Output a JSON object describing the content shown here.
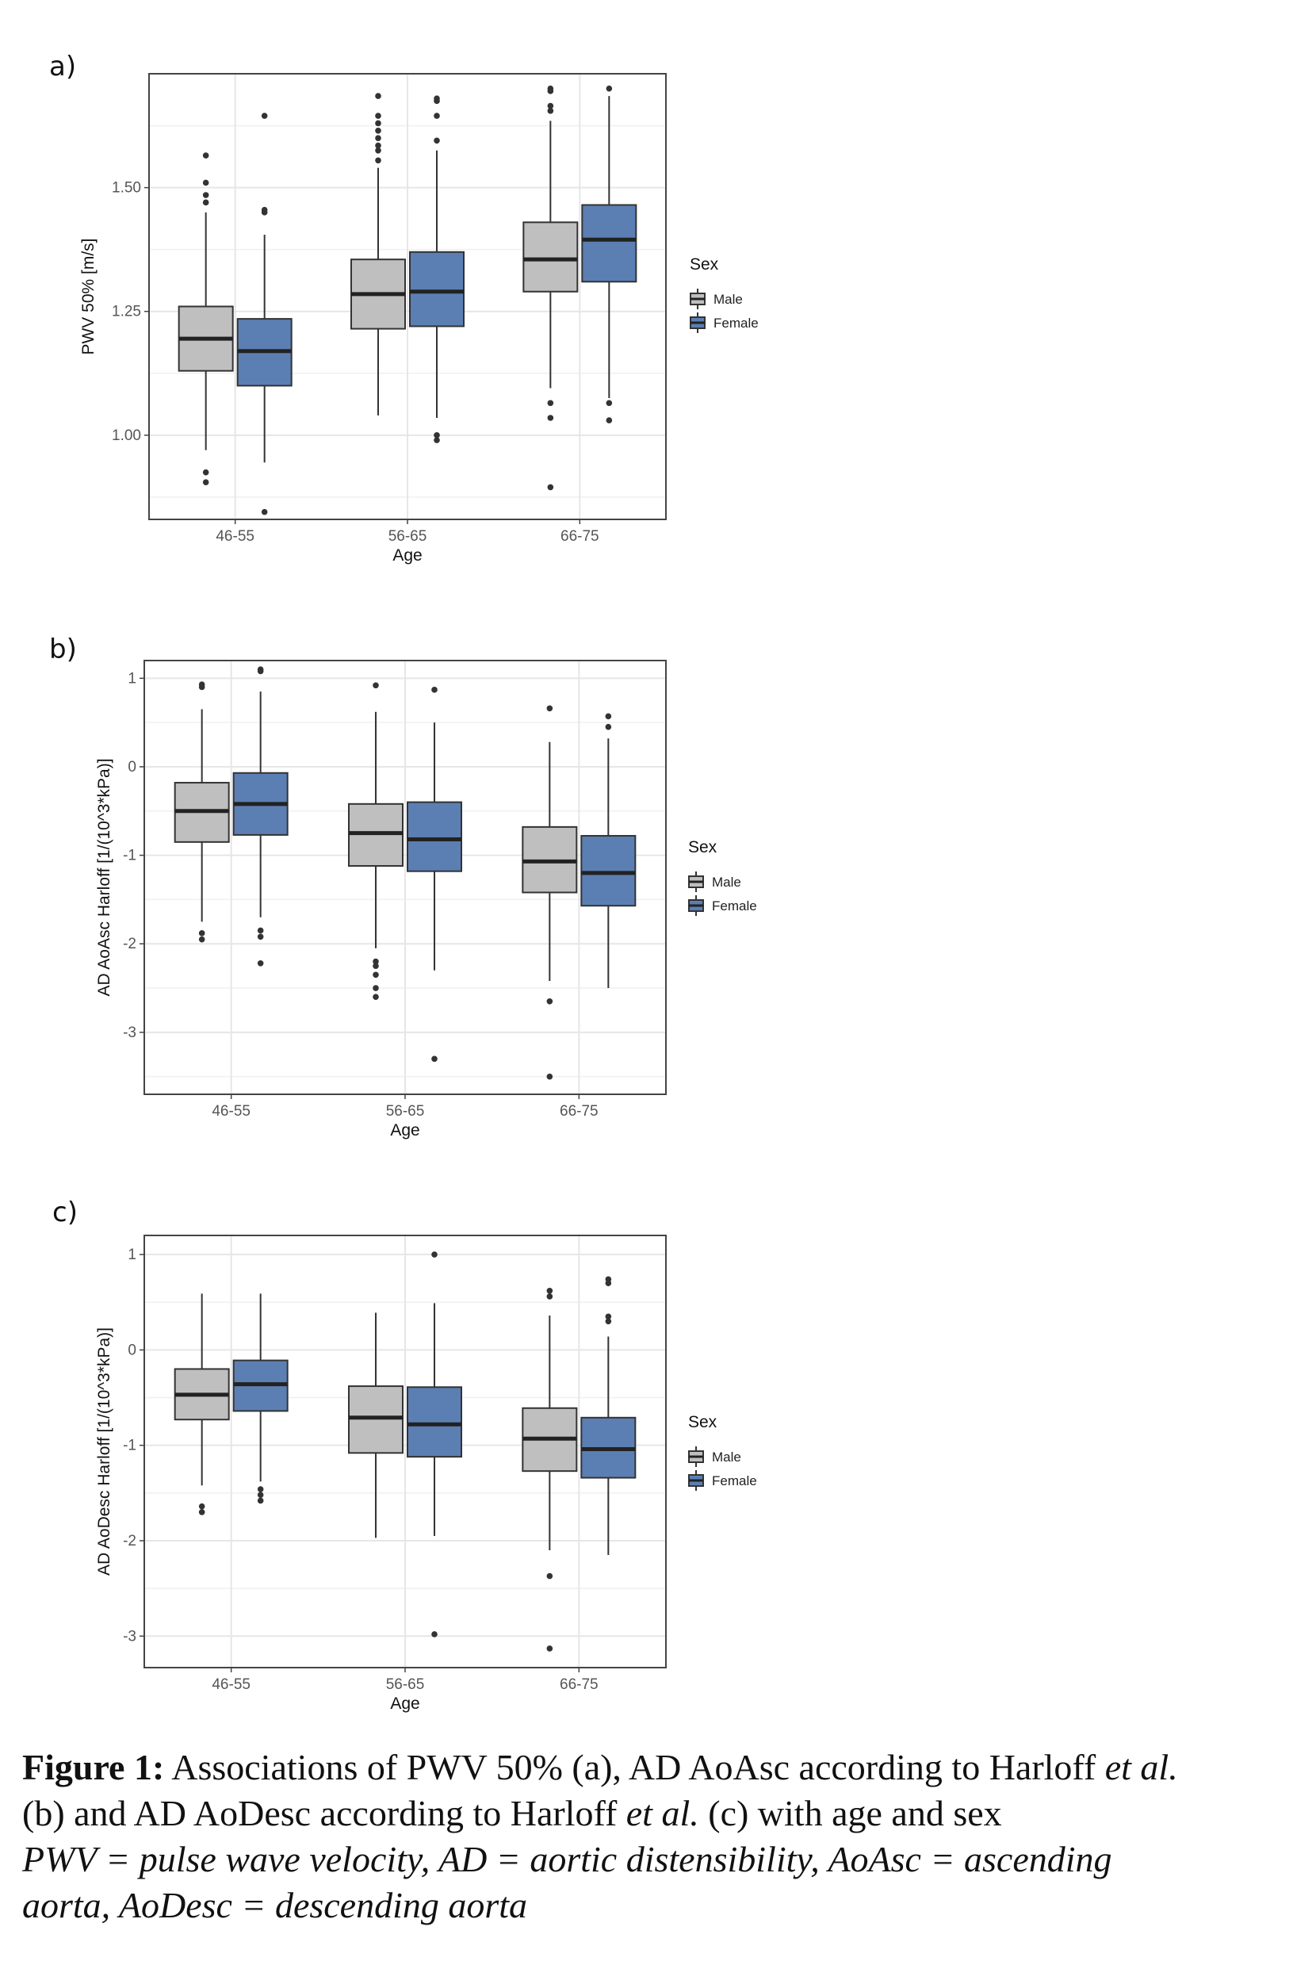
{
  "chart_data": [
    {
      "panel": "a)",
      "type": "box",
      "categories": [
        "46-55",
        "56-65",
        "66-75"
      ],
      "xlabel": "Age",
      "ylabel": "PWV 50% [m/s]",
      "ylim": [
        0.83,
        1.73
      ],
      "yticks": [
        1.0,
        1.25,
        1.5
      ],
      "ytick_labels": [
        "1.00",
        "1.25",
        "1.50"
      ],
      "grid": true,
      "legend": {
        "title": "Sex",
        "position": "right"
      },
      "series": [
        {
          "name": "Male",
          "color": "#bfbfbf",
          "boxes": [
            {
              "q1": 1.13,
              "median": 1.195,
              "q3": 1.26,
              "whisker_low": 0.97,
              "whisker_high": 1.45,
              "outliers": [
                0.905,
                0.925,
                1.47,
                1.485,
                1.51,
                1.565
              ]
            },
            {
              "q1": 1.215,
              "median": 1.285,
              "q3": 1.355,
              "whisker_low": 1.04,
              "whisker_high": 1.54,
              "outliers": [
                1.555,
                1.575,
                1.585,
                1.6,
                1.615,
                1.63,
                1.645,
                1.685
              ]
            },
            {
              "q1": 1.29,
              "median": 1.355,
              "q3": 1.43,
              "whisker_low": 1.095,
              "whisker_high": 1.635,
              "outliers": [
                0.895,
                1.035,
                1.065,
                1.655,
                1.665,
                1.695,
                1.7
              ]
            }
          ]
        },
        {
          "name": "Female",
          "color": "#5b7fb3",
          "boxes": [
            {
              "q1": 1.1,
              "median": 1.17,
              "q3": 1.235,
              "whisker_low": 0.945,
              "whisker_high": 1.405,
              "outliers": [
                0.845,
                1.45,
                1.455,
                1.645
              ]
            },
            {
              "q1": 1.22,
              "median": 1.29,
              "q3": 1.37,
              "whisker_low": 1.035,
              "whisker_high": 1.575,
              "outliers": [
                0.99,
                1.0,
                1.595,
                1.645,
                1.675,
                1.68
              ]
            },
            {
              "q1": 1.31,
              "median": 1.395,
              "q3": 1.465,
              "whisker_low": 1.075,
              "whisker_high": 1.685,
              "outliers": [
                1.03,
                1.065,
                1.7
              ]
            }
          ]
        }
      ]
    },
    {
      "panel": "b)",
      "type": "box",
      "categories": [
        "46-55",
        "56-65",
        "66-75"
      ],
      "xlabel": "Age",
      "ylabel": "AD AoAsc Harloff [1/(10^3*kPa)]",
      "ylim": [
        -3.7,
        1.2
      ],
      "yticks": [
        -3,
        -2,
        -1,
        0,
        1
      ],
      "ytick_labels": [
        "-3",
        "-2",
        "-1",
        "0",
        "1"
      ],
      "grid": true,
      "legend": {
        "title": "Sex",
        "position": "right"
      },
      "series": [
        {
          "name": "Male",
          "color": "#bfbfbf",
          "boxes": [
            {
              "q1": -0.85,
              "median": -0.5,
              "q3": -0.18,
              "whisker_low": -1.75,
              "whisker_high": 0.65,
              "outliers": [
                -1.95,
                -1.88,
                0.9,
                0.93
              ]
            },
            {
              "q1": -1.12,
              "median": -0.75,
              "q3": -0.42,
              "whisker_low": -2.05,
              "whisker_high": 0.62,
              "outliers": [
                -2.6,
                -2.5,
                -2.35,
                -2.25,
                -2.2,
                0.92
              ]
            },
            {
              "q1": -1.42,
              "median": -1.07,
              "q3": -0.68,
              "whisker_low": -2.42,
              "whisker_high": 0.28,
              "outliers": [
                -3.5,
                -2.65,
                0.66
              ]
            }
          ]
        },
        {
          "name": "Female",
          "color": "#5b7fb3",
          "boxes": [
            {
              "q1": -0.77,
              "median": -0.42,
              "q3": -0.07,
              "whisker_low": -1.7,
              "whisker_high": 0.85,
              "outliers": [
                -2.22,
                -1.92,
                -1.85,
                1.08,
                1.1
              ]
            },
            {
              "q1": -1.18,
              "median": -0.82,
              "q3": -0.4,
              "whisker_low": -2.3,
              "whisker_high": 0.5,
              "outliers": [
                -3.3,
                0.87
              ]
            },
            {
              "q1": -1.57,
              "median": -1.2,
              "q3": -0.78,
              "whisker_low": -2.5,
              "whisker_high": 0.32,
              "outliers": [
                0.45,
                0.57
              ]
            }
          ]
        }
      ]
    },
    {
      "panel": "c)",
      "type": "box",
      "categories": [
        "46-55",
        "56-65",
        "66-75"
      ],
      "xlabel": "Age",
      "ylabel": "AD AoDesc Harloff [1/(10^3*kPa)]",
      "ylim": [
        -3.33,
        1.2
      ],
      "yticks": [
        -3,
        -2,
        -1,
        0,
        1
      ],
      "ytick_labels": [
        "-3",
        "-2",
        "-1",
        "0",
        "1"
      ],
      "grid": true,
      "legend": {
        "title": "Sex",
        "position": "right"
      },
      "series": [
        {
          "name": "Male",
          "color": "#bfbfbf",
          "boxes": [
            {
              "q1": -0.73,
              "median": -0.47,
              "q3": -0.2,
              "whisker_low": -1.42,
              "whisker_high": 0.59,
              "outliers": [
                -1.7,
                -1.64
              ]
            },
            {
              "q1": -1.08,
              "median": -0.71,
              "q3": -0.38,
              "whisker_low": -1.97,
              "whisker_high": 0.39,
              "outliers": []
            },
            {
              "q1": -1.27,
              "median": -0.93,
              "q3": -0.61,
              "whisker_low": -2.1,
              "whisker_high": 0.36,
              "outliers": [
                -3.13,
                -2.37,
                0.56,
                0.62
              ]
            }
          ]
        },
        {
          "name": "Female",
          "color": "#5b7fb3",
          "boxes": [
            {
              "q1": -0.64,
              "median": -0.36,
              "q3": -0.11,
              "whisker_low": -1.38,
              "whisker_high": 0.59,
              "outliers": [
                -1.58,
                -1.52,
                -1.46
              ]
            },
            {
              "q1": -1.12,
              "median": -0.78,
              "q3": -0.39,
              "whisker_low": -1.95,
              "whisker_high": 0.49,
              "outliers": [
                -2.98,
                1.0
              ]
            },
            {
              "q1": -1.34,
              "median": -1.04,
              "q3": -0.71,
              "whisker_low": -2.15,
              "whisker_high": 0.14,
              "outliers": [
                0.3,
                0.35,
                0.7,
                0.74
              ]
            }
          ]
        }
      ]
    }
  ],
  "caption": {
    "label": "Figure 1:",
    "line1_text": " Associations of PWV 50% (a), AD AoAsc according to Harloff ",
    "line1_etal": "et al.",
    "line2_a": "(b) and AD AoDesc according to Harloff ",
    "line2_etal": "et al.",
    "line2_b": " (c) with age and sex",
    "line3": "PWV = pulse wave velocity, AD = aortic distensibility, AoAsc = ascending",
    "line4": "aorta, AoDesc = descending aorta"
  }
}
